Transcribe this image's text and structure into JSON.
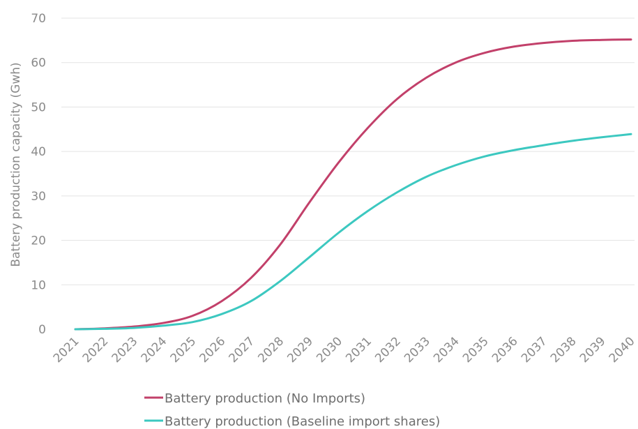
{
  "chart_data": {
    "type": "line",
    "title": "",
    "xlabel": "",
    "ylabel": "Battery production capacity (Gwh)",
    "ylim": [
      0,
      70
    ],
    "yticks": [
      0,
      10,
      20,
      30,
      40,
      50,
      60,
      70
    ],
    "grid": true,
    "legend_position": "bottom",
    "categories": [
      "2021",
      "2022",
      "2023",
      "2024",
      "2025",
      "2026",
      "2027",
      "2028",
      "2029",
      "2030",
      "2031",
      "2032",
      "2033",
      "2034",
      "2035",
      "2036",
      "2037",
      "2038",
      "2039",
      "2040"
    ],
    "series": [
      {
        "name": "Battery production (No Imports)",
        "color": "#c2406a",
        "values": [
          0.0,
          0.2,
          0.6,
          1.4,
          3.0,
          6.3,
          11.5,
          19.0,
          28.5,
          37.5,
          45.3,
          51.8,
          56.6,
          60.0,
          62.2,
          63.6,
          64.4,
          64.9,
          65.1,
          65.2
        ]
      },
      {
        "name": "Battery production (Baseline import shares)",
        "color": "#3cc8c0",
        "values": [
          0.0,
          0.1,
          0.3,
          0.8,
          1.6,
          3.4,
          6.3,
          10.8,
          16.2,
          21.7,
          26.6,
          30.8,
          34.3,
          36.9,
          38.9,
          40.3,
          41.4,
          42.4,
          43.2,
          43.9
        ]
      }
    ]
  }
}
